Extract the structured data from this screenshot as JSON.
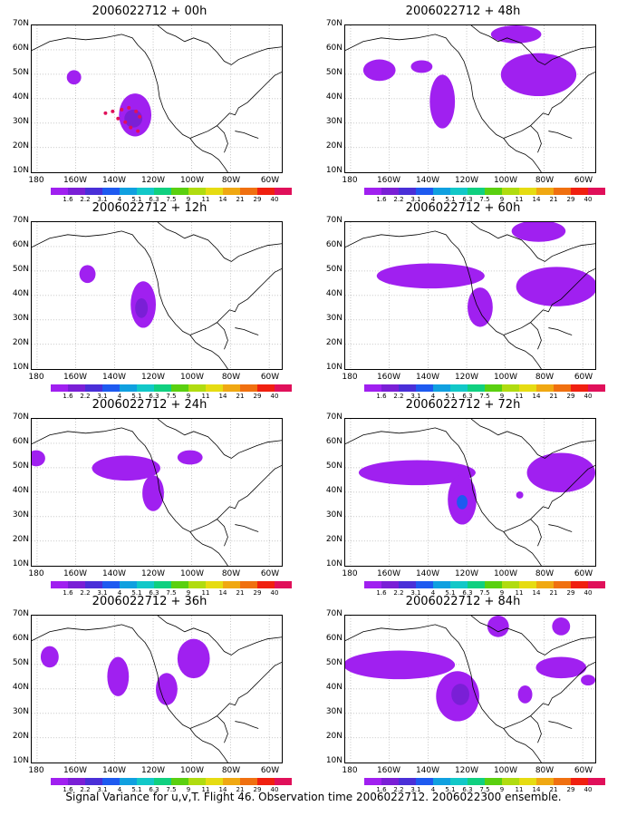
{
  "panels": [
    {
      "title": "2006022712 + 00h"
    },
    {
      "title": "2006022712 + 48h"
    },
    {
      "title": "2006022712 + 12h"
    },
    {
      "title": "2006022712 + 60h"
    },
    {
      "title": "2006022712 + 24h"
    },
    {
      "title": "2006022712 + 72h"
    },
    {
      "title": "2006022712 + 36h"
    },
    {
      "title": "2006022712 + 84h"
    }
  ],
  "y_ticks": [
    "70N",
    "60N",
    "50N",
    "40N",
    "30N",
    "20N",
    "10N"
  ],
  "x_ticks": [
    "180",
    "160W",
    "140W",
    "120W",
    "100W",
    "80W",
    "60W"
  ],
  "colorbar": {
    "labels": [
      "1.6",
      "2.2",
      "3.1",
      "4",
      "5.1",
      "6.3",
      "7.5",
      "9",
      "11",
      "14",
      "21",
      "29",
      "40"
    ],
    "colors": [
      "#a020f0",
      "#7a1fd6",
      "#4a2fd8",
      "#1e5af0",
      "#10a0e0",
      "#12c8c8",
      "#10d080",
      "#5ad010",
      "#b0dc10",
      "#e6dc12",
      "#f0a812",
      "#f07010",
      "#f02010",
      "#e0105a"
    ]
  },
  "caption": "Signal Variance for u,v,T. Flight 46. Observation time 2006022712. 2006022300 ensemble."
}
